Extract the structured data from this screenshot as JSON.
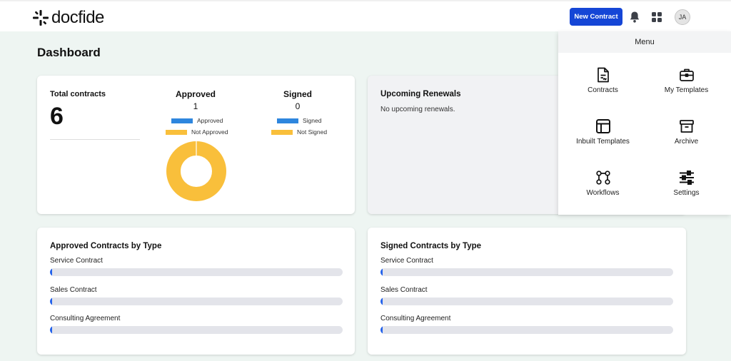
{
  "header": {
    "logo_text": "docfide",
    "new_contract_label": "New Contract",
    "avatar_initials": "JA"
  },
  "page": {
    "title": "Dashboard"
  },
  "summary": {
    "total_label": "Total contracts",
    "total_value": "6",
    "approved": {
      "title": "Approved",
      "count": "1",
      "legend": [
        "Approved",
        "Not Approved"
      ]
    },
    "signed": {
      "title": "Signed",
      "count": "0",
      "legend": [
        "Signed",
        "Not Signed"
      ]
    },
    "donut_fraction_filled": 1.0
  },
  "renewals": {
    "title": "Upcoming Renewals",
    "empty_text": "No upcoming renewals."
  },
  "approved_by_type": {
    "title": "Approved Contracts by Type",
    "rows": [
      {
        "label": "Service Contract",
        "fraction": 0.0
      },
      {
        "label": "Sales Contract",
        "fraction": 0.0
      },
      {
        "label": "Consulting Agreement",
        "fraction": 0.0
      }
    ]
  },
  "signed_by_type": {
    "title": "Signed Contracts by Type",
    "rows": [
      {
        "label": "Service Contract",
        "fraction": 0.0
      },
      {
        "label": "Sales Contract",
        "fraction": 0.0
      },
      {
        "label": "Consulting Agreement",
        "fraction": 0.0
      }
    ]
  },
  "menu": {
    "title": "Menu",
    "items": [
      {
        "label": "Contracts",
        "icon": "contract-document-icon"
      },
      {
        "label": "My Templates",
        "icon": "briefcase-icon"
      },
      {
        "label": "Inbuilt Templates",
        "icon": "layout-template-icon"
      },
      {
        "label": "Archive",
        "icon": "archive-box-icon"
      },
      {
        "label": "Workflows",
        "icon": "workflow-icon"
      },
      {
        "label": "Settings",
        "icon": "sliders-icon"
      }
    ]
  },
  "colors": {
    "primary": "#1546d6",
    "approved_blue": "#2e86de",
    "pending_yellow": "#f9bf3b",
    "bar_fill": "#2563eb",
    "background": "#eef5f2"
  }
}
